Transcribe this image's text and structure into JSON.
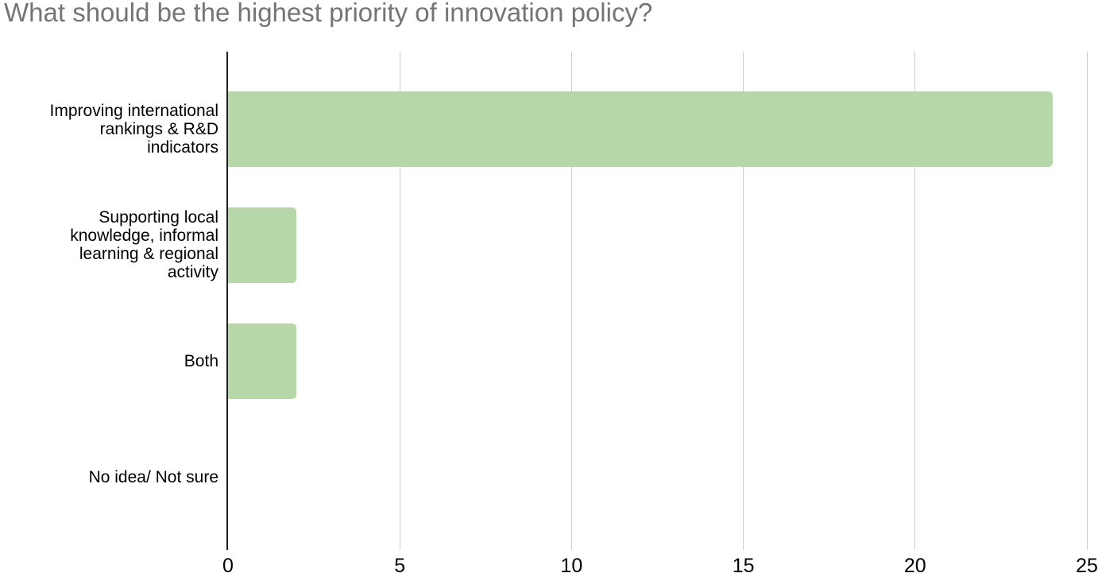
{
  "chart_data": {
    "type": "bar",
    "orientation": "horizontal",
    "title": "What should be the highest priority of innovation policy?",
    "categories": [
      "Improving international rankings & R&D indicators",
      "Supporting local knowledge, informal learning & regional activity",
      "Both",
      "No idea/ Not sure"
    ],
    "category_display_lines": [
      [
        "Improving international",
        "rankings & R&D",
        "indicators"
      ],
      [
        "Supporting local",
        "knowledge, informal",
        "learning & regional",
        "activity"
      ],
      [
        "Both"
      ],
      [
        "No idea/ Not sure"
      ]
    ],
    "values": [
      24,
      2,
      2,
      0
    ],
    "xlabel": "",
    "ylabel": "",
    "xlim": [
      0,
      25
    ],
    "xticks": [
      0,
      5,
      10,
      15,
      20,
      25
    ],
    "grid": true,
    "legend": "none",
    "colors": {
      "bar": "#b6d7a8",
      "gridline": "#cccccc",
      "axis": "#212121",
      "title": "#757575",
      "label": "#000000",
      "tick_label": "#000000",
      "background": "#ffffff"
    }
  }
}
